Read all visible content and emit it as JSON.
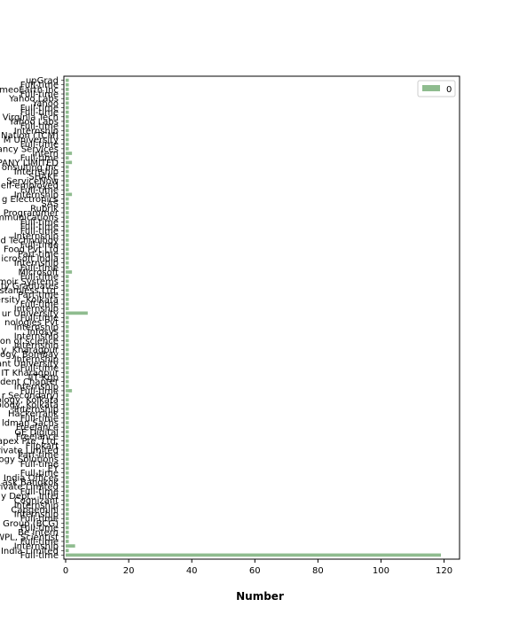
{
  "chart_data": {
    "type": "bar",
    "orientation": "horizontal",
    "xlabel": "Number",
    "xlim": [
      0,
      125
    ],
    "xticks": [
      0,
      20,
      40,
      60,
      80,
      100,
      120
    ],
    "legend": {
      "entries": [
        "0"
      ],
      "placement": "top-right"
    },
    "bar_color": "#8fbc8f",
    "categories": [
      "upGrad",
      "Full-time",
      "meoEarth Inc",
      "Full-time",
      "Yahoo Labs",
      "Yahoo",
      "Full-time",
      "Full-time",
      "Virginia Tech",
      "Yahoo Labs",
      "Full-time",
      "Internship",
      "Nation (TCM)",
      "M University",
      "Full-time",
      "ancy Services",
      "Intern",
      "Full-time",
      "PANY LIMITED",
      "onsulting Inc",
      "Internship",
      "SHAKE",
      "ServiceNow",
      "elf-employed",
      "Full-time",
      "Internship",
      "g Electronics",
      "SAS",
      "Rubrik",
      "Programmer",
      "mmunications",
      "Full-time",
      "Full-time",
      "Full-time",
      "Internship",
      "d Technology",
      "Full-time",
      "Food Pvt Ltd",
      "Part-time",
      "icrosoft India",
      "Internship",
      "Full-time",
      "Microsoft",
      "Full-time",
      "moir Systems",
      "ty Graduates",
      "stamless Ltd.",
      "Part-time",
      "ersity, Kolkata",
      "Full-time",
      "Internship",
      "ur University",
      "Full-time",
      "nologies Pvt",
      "Internship",
      "Infosys",
      "Internship",
      "on of science",
      "Internship",
      "y, Kharagpur",
      "ogy, Bombay",
      "Internship",
      "ant University",
      "Full-time",
      "IT Kharagpur",
      "IIT Kgp",
      "ident Chapter",
      "Internship",
      "Full-time",
      "r Secondary)",
      "ology, Kolkata",
      "ology, Kolkata",
      "Internship",
      "Hackerrank",
      "Full-time",
      "ldman Sachs",
      "Freelance",
      "GE Digital",
      "Freelance",
      "apex Pte. Ltd.",
      "Flipkart",
      "rivate Limited",
      "Part-time",
      "logy Solutions",
      "Full-time",
      "EY",
      "Full-time",
      "India Offices",
      "ask Bangkok",
      "rivate Limited",
      "Full-time",
      "y Dept., Intel",
      "Cognizant",
      "Internship",
      "Capgemini",
      "Internship",
      "Full-time",
      "Group (BCG)",
      "Full-time",
      "Be Intern",
      "WPL, Scientist",
      "Full-time",
      "Internship",
      "India Limited",
      "Full-time"
    ],
    "values": [
      1,
      1,
      1,
      1,
      1,
      1,
      1,
      1,
      1,
      1,
      1,
      1,
      1,
      1,
      1,
      1,
      2,
      1,
      2,
      1,
      1,
      1,
      1,
      1,
      1,
      2,
      1,
      1,
      1,
      1,
      1,
      1,
      1,
      1,
      1,
      1,
      1,
      1,
      1,
      1,
      1,
      1,
      2,
      1,
      1,
      1,
      1,
      1,
      1,
      1,
      1,
      7,
      1,
      1,
      1,
      1,
      1,
      1,
      1,
      1,
      1,
      1,
      1,
      1,
      1,
      1,
      1,
      1,
      2,
      1,
      1,
      1,
      1,
      1,
      1,
      1,
      1,
      1,
      1,
      1,
      1,
      1,
      1,
      1,
      1,
      1,
      1,
      1,
      1,
      1,
      1,
      1,
      1,
      1,
      1,
      1,
      1,
      1,
      1,
      1,
      1,
      1,
      3,
      1,
      119
    ]
  }
}
